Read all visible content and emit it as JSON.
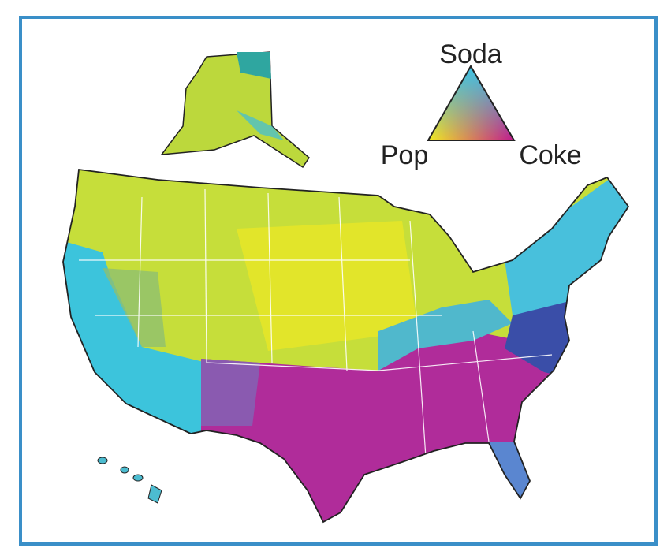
{
  "legend": {
    "top": "Soda",
    "left": "Pop",
    "right": "Coke"
  }
}
